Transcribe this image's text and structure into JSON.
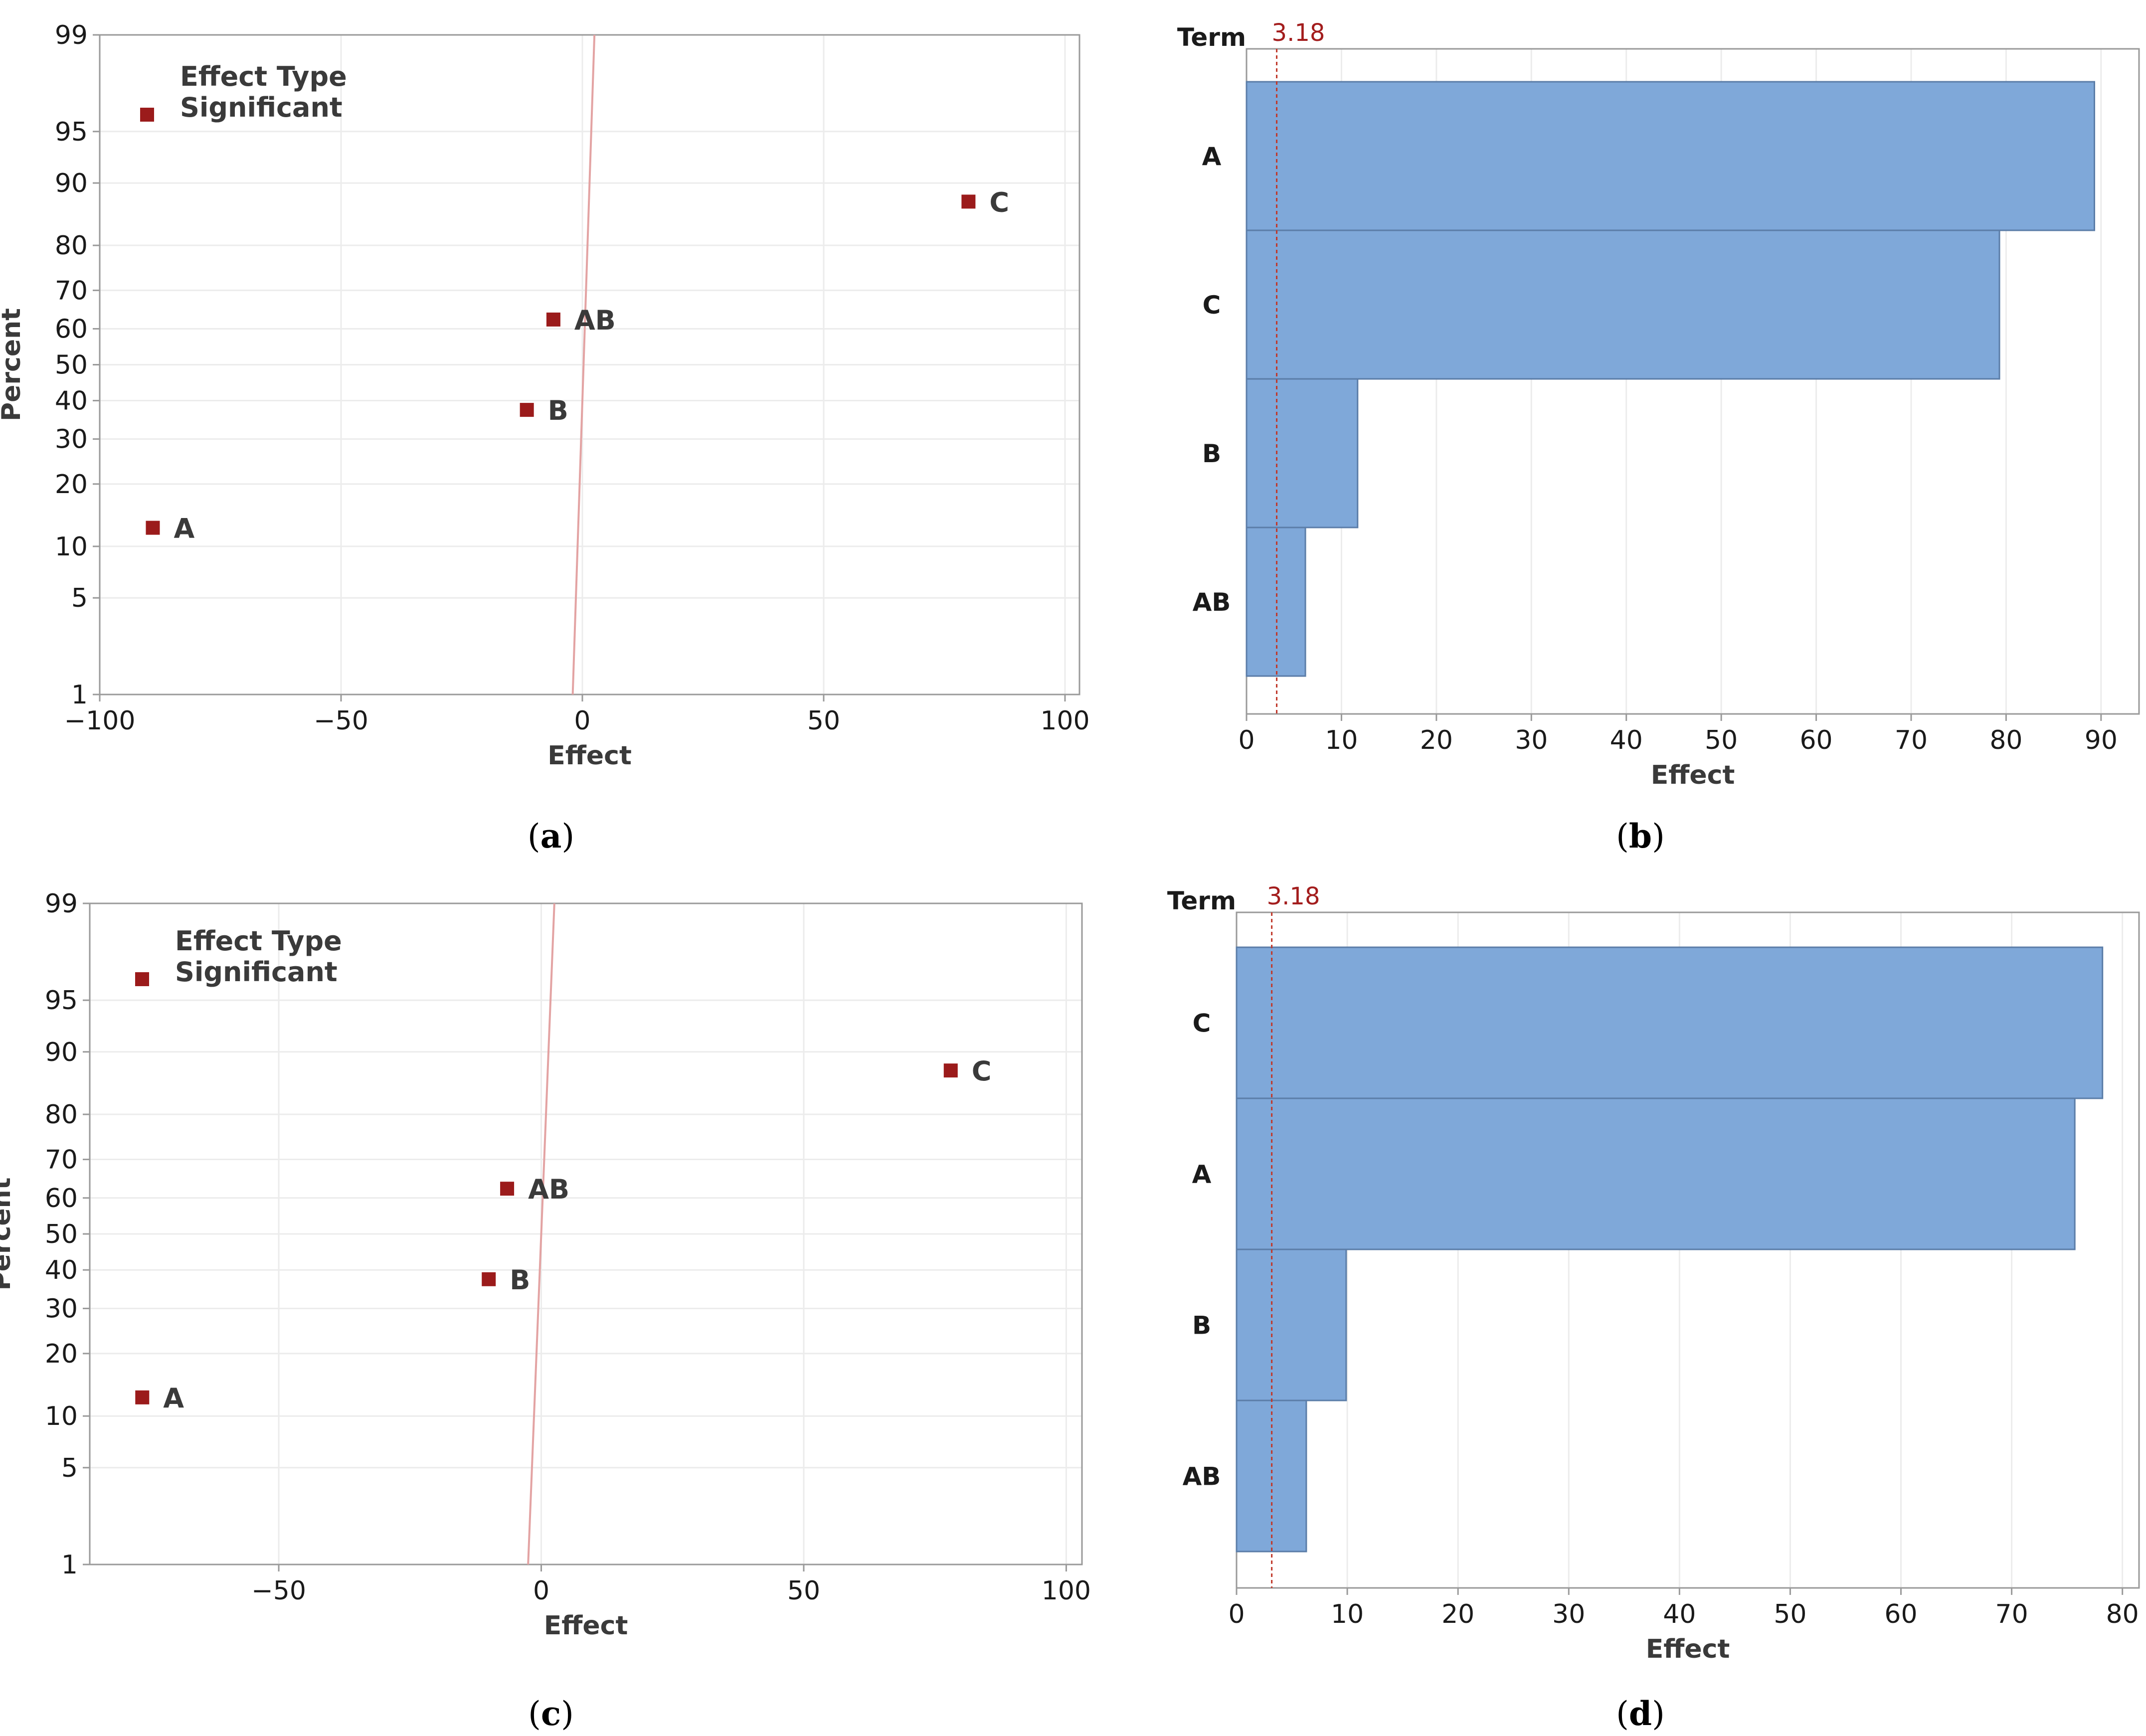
{
  "colors": {
    "marker": "#9b1b1b",
    "fit_line": "#e3a3a3",
    "bar_fill": "#7fa8d9",
    "bar_stroke": "#5b7da8",
    "ref_line": "#c0392b",
    "grid": "#ececec",
    "axis": "#9a9a9a"
  },
  "chart_data": [
    {
      "type": "scatter",
      "panel": "a",
      "caption": "a",
      "xlabel": "Effect",
      "ylabel": "Percent",
      "xlim": [
        -100,
        103
      ],
      "xticks": [
        -100,
        -50,
        0,
        50,
        100
      ],
      "xtick_labels": [
        "−100",
        "−50",
        "0",
        "50",
        "100"
      ],
      "yticks": [
        1,
        5,
        10,
        20,
        30,
        40,
        50,
        60,
        70,
        80,
        90,
        95,
        99
      ],
      "legend_title": "Effect Type",
      "legend_item": "Significant",
      "fit_line": {
        "x_at_1": -2,
        "x_at_99": 2.5
      },
      "points": [
        {
          "label": "A",
          "x": -89,
          "y": 12.5
        },
        {
          "label": "B",
          "x": -11.5,
          "y": 37.5
        },
        {
          "label": "AB",
          "x": -6,
          "y": 62.5
        },
        {
          "label": "C",
          "x": 80,
          "y": 87.5
        }
      ]
    },
    {
      "type": "bar",
      "orientation": "horizontal",
      "panel": "b",
      "caption": "b",
      "xlabel": "Effect",
      "ylabel": "Term",
      "xlim": [
        0,
        94
      ],
      "xticks": [
        0,
        10,
        20,
        30,
        40,
        50,
        60,
        70,
        80,
        90
      ],
      "reference_value": 3.18,
      "reference_label": "3.18",
      "categories": [
        "A",
        "C",
        "B",
        "AB"
      ],
      "values": [
        89.3,
        79.3,
        11.7,
        6.2
      ]
    },
    {
      "type": "scatter",
      "panel": "c",
      "caption": "c",
      "xlabel": "Effect",
      "ylabel": "Percent",
      "xlim": [
        -86,
        103
      ],
      "xticks": [
        -50,
        0,
        50,
        100
      ],
      "xtick_labels": [
        "−50",
        "0",
        "50",
        "100"
      ],
      "yticks": [
        1,
        5,
        10,
        20,
        30,
        40,
        50,
        60,
        70,
        80,
        90,
        95,
        99
      ],
      "legend_title": "Effect Type",
      "legend_item": "Significant",
      "fit_line": {
        "x_at_1": -2.5,
        "x_at_99": 2.5
      },
      "points": [
        {
          "label": "A",
          "x": -76,
          "y": 12.5
        },
        {
          "label": "B",
          "x": -10,
          "y": 37.5
        },
        {
          "label": "AB",
          "x": -6.5,
          "y": 62.5
        },
        {
          "label": "C",
          "x": 78,
          "y": 87.5
        }
      ]
    },
    {
      "type": "bar",
      "orientation": "horizontal",
      "panel": "d",
      "caption": "d",
      "xlabel": "Effect",
      "ylabel": "Term",
      "xlim": [
        0,
        81.5
      ],
      "xticks": [
        0,
        10,
        20,
        30,
        40,
        50,
        60,
        70,
        80
      ],
      "reference_value": 3.18,
      "reference_label": "3.18",
      "categories": [
        "C",
        "A",
        "B",
        "AB"
      ],
      "values": [
        78.2,
        75.7,
        9.9,
        6.3
      ]
    }
  ]
}
